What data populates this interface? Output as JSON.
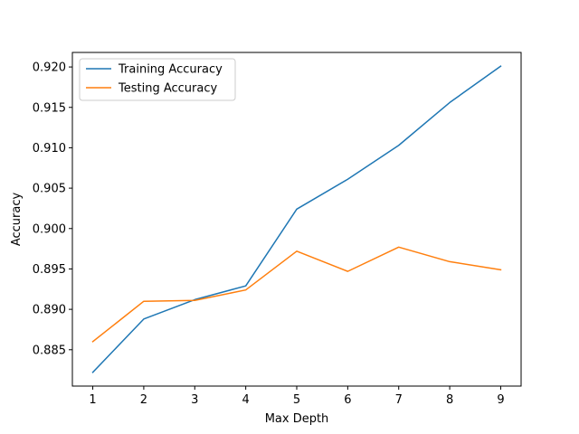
{
  "chart_data": {
    "type": "line",
    "title": "",
    "xlabel": "Max Depth",
    "ylabel": "Accuracy",
    "x": [
      1,
      2,
      3,
      4,
      5,
      6,
      7,
      8,
      9
    ],
    "xlim": [
      0.6,
      9.4
    ],
    "ylim": [
      0.8805,
      0.9218
    ],
    "xticks": [
      "1",
      "2",
      "3",
      "4",
      "5",
      "6",
      "7",
      "8",
      "9"
    ],
    "yticks": [
      "0.885",
      "0.890",
      "0.895",
      "0.900",
      "0.905",
      "0.910",
      "0.915",
      "0.920"
    ],
    "grid": false,
    "legend_position": "top-left",
    "series": [
      {
        "name": "Training Accuracy",
        "color": "#1f77b4",
        "values": [
          0.8822,
          0.8888,
          0.8912,
          0.8929,
          0.9024,
          0.9061,
          0.9103,
          0.9156,
          0.9201
        ]
      },
      {
        "name": "Testing Accuracy",
        "color": "#ff7f0e",
        "values": [
          0.886,
          0.891,
          0.8911,
          0.8924,
          0.8972,
          0.8947,
          0.8977,
          0.8959,
          0.8949
        ]
      }
    ]
  }
}
